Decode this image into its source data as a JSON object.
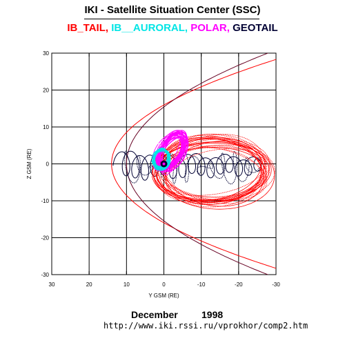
{
  "header": {
    "title": "IKI - Satellite Situation Center (SSC)"
  },
  "legend": [
    {
      "label": "IB_TAIL,",
      "color": "#ff0000"
    },
    {
      "label": " IB__AURORAL,",
      "color": "#00e5e5"
    },
    {
      "label": " POLAR,",
      "color": "#ff00ff"
    },
    {
      "label": " GEOTAIL",
      "color": "#000033"
    }
  ],
  "footer": {
    "month": "December",
    "year": "1998",
    "url": "http://www.iki.rssi.ru/vprokhor/comp2.htm"
  },
  "chart_data": {
    "type": "line",
    "title": "IKI - Satellite Situation Center (SSC)",
    "xlabel": "Y GSM (RE)",
    "ylabel": "Z GSM (RE)",
    "xlim": [
      30,
      -30
    ],
    "ylim": [
      -30,
      30
    ],
    "xticks": [
      "30",
      "20",
      "10",
      "0",
      "-10",
      "-20",
      "-30"
    ],
    "yticks": [
      "30",
      "20",
      "10",
      "0",
      "-10",
      "-20",
      "-30"
    ],
    "grid": true,
    "boundaries": {
      "bow_shock": {
        "color": "#ff0000",
        "nose": 14,
        "flank_slope": 0.55
      },
      "magnetopause": {
        "color": "#660022",
        "nose": 10,
        "flank_slope": 0.42
      }
    },
    "series": [
      {
        "name": "IB_TAIL",
        "color": "#ff0000"
      },
      {
        "name": "IB__AURORAL",
        "color": "#00e5e5"
      },
      {
        "name": "POLAR",
        "color": "#ff00ff"
      },
      {
        "name": "GEOTAIL",
        "color": "#000033"
      }
    ]
  }
}
